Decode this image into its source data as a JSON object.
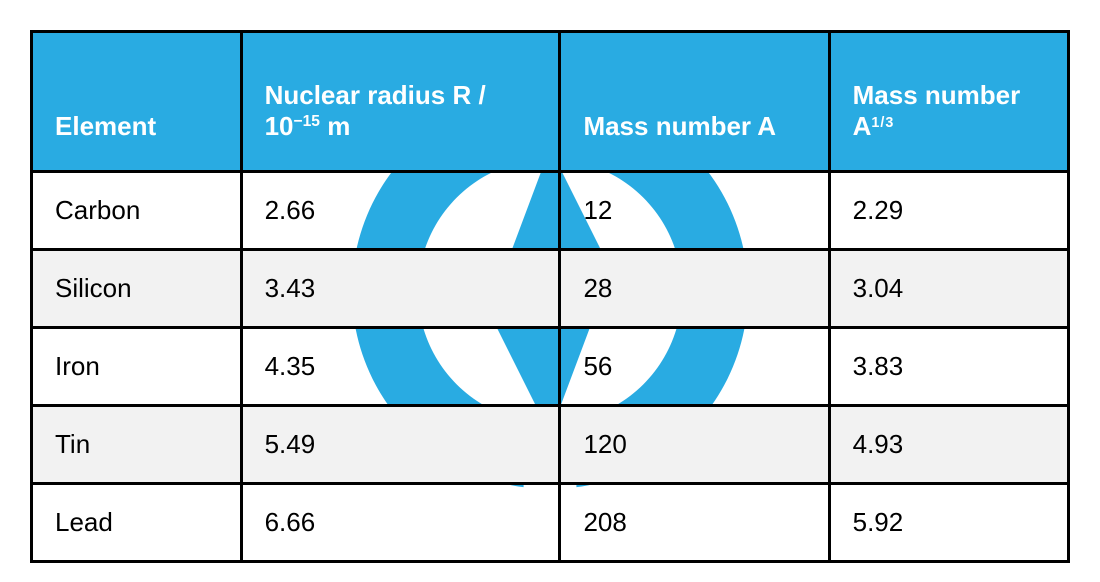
{
  "table": {
    "type": "table",
    "header_bg": "#29abe2",
    "header_fg": "#ffffff",
    "border_color": "#000000",
    "alt_row_bg": "#f2f2f2",
    "watermark_color": "#29abe2",
    "columns": [
      {
        "label_html": "Element"
      },
      {
        "label_html": "Nuclear radius R / 10<span class='sup'>−15</span> m"
      },
      {
        "label_html": "Mass number A"
      },
      {
        "label_html": "Mass number A<span class='frac'>1/3</span>"
      }
    ],
    "rows": [
      {
        "element": "Carbon",
        "radius": "2.66",
        "massA": "12",
        "a13": "2.29",
        "alt": false
      },
      {
        "element": "Silicon",
        "radius": "3.43",
        "massA": "28",
        "a13": "3.04",
        "alt": true
      },
      {
        "element": "Iron",
        "radius": "4.35",
        "massA": "56",
        "a13": "3.83",
        "alt": false
      },
      {
        "element": "Tin",
        "radius": "5.49",
        "massA": "120",
        "a13": "4.93",
        "alt": true
      },
      {
        "element": "Lead",
        "radius": "6.66",
        "massA": "208",
        "a13": "5.92",
        "alt": false
      }
    ]
  }
}
